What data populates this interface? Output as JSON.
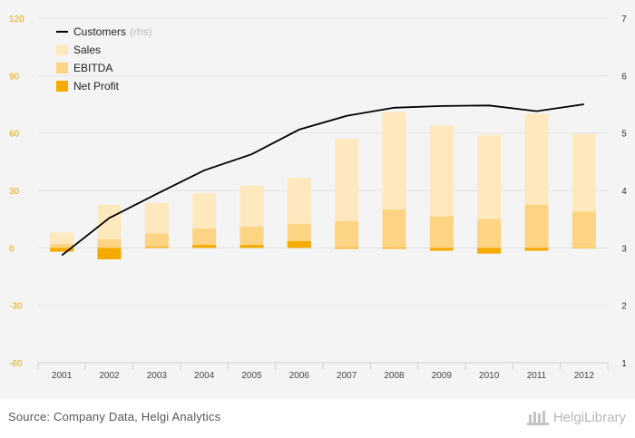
{
  "chart_data": {
    "type": "bar",
    "categories": [
      "2001",
      "2002",
      "2003",
      "2004",
      "2005",
      "2006",
      "2007",
      "2008",
      "2009",
      "2010",
      "2011",
      "2012"
    ],
    "series": [
      {
        "name": "Sales",
        "axis": "left",
        "kind": "bar",
        "color": "#fde9bd",
        "values": [
          8,
          22.5,
          23.5,
          28.5,
          32.5,
          36.5,
          57,
          71,
          64,
          59,
          70,
          59.5
        ]
      },
      {
        "name": "EBITDA",
        "axis": "left",
        "kind": "bar",
        "color": "#fcd483",
        "values": [
          2,
          4.5,
          7.5,
          10,
          11,
          12.5,
          14,
          20,
          16.5,
          15,
          22.5,
          19
        ]
      },
      {
        "name": "Net Profit",
        "axis": "left",
        "kind": "bar",
        "color": "#f5aa00",
        "values": [
          -2,
          -6,
          0.5,
          1.5,
          1.5,
          3.5,
          -0.5,
          -0.5,
          -1.5,
          -3,
          -1.5,
          0
        ]
      },
      {
        "name": "Customers",
        "axis": "right",
        "kind": "line",
        "color": "#000000",
        "values": [
          2.87,
          3.52,
          3.94,
          4.35,
          4.63,
          5.06,
          5.3,
          5.44,
          5.47,
          5.48,
          5.38,
          5.5
        ]
      }
    ],
    "yticks_left": [
      "120",
      "90",
      "60",
      "30",
      "0",
      "-30",
      "-60"
    ],
    "ylim_left": [
      -60,
      120
    ],
    "yticks_right": [
      "7",
      "6",
      "5",
      "4",
      "3",
      "2",
      "1"
    ],
    "ylim_right": [
      1,
      7
    ],
    "legend": {
      "position": "top-left",
      "items": [
        {
          "label": "Customers",
          "suffix": "(rhs)",
          "kind": "line",
          "color": "#000000"
        },
        {
          "label": "Sales",
          "kind": "box",
          "color": "#fde9bd"
        },
        {
          "label": "EBITDA",
          "kind": "box",
          "color": "#fcd483"
        },
        {
          "label": "Net Profit",
          "kind": "box",
          "color": "#f5aa00"
        }
      ]
    },
    "grid": true
  },
  "footer": {
    "source": "Source: Company Data, Helgi Analytics",
    "brand": "HelgiLibrary"
  }
}
